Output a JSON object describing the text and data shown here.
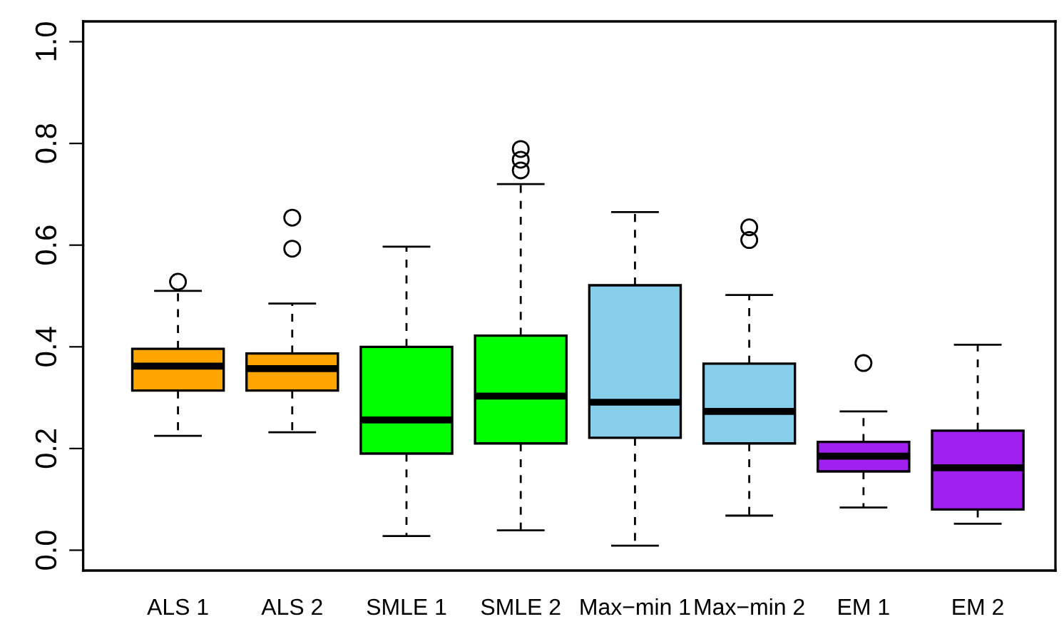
{
  "chart_data": {
    "type": "box",
    "categories": [
      "ALS 1",
      "ALS 2",
      "SMLE 1",
      "SMLE 2",
      "Max−min 1",
      "Max−min 2",
      "EM 1",
      "EM 2"
    ],
    "colors": [
      "#ffa500",
      "#ffa500",
      "#00ff00",
      "#00ff00",
      "#87ceeb",
      "#87ceeb",
      "#a020f0",
      "#a020f0"
    ],
    "boxes": [
      {
        "low": 0.225,
        "q1": 0.314,
        "median": 0.362,
        "q3": 0.396,
        "high": 0.51,
        "outliers": [
          0.528
        ]
      },
      {
        "low": 0.232,
        "q1": 0.314,
        "median": 0.357,
        "q3": 0.387,
        "high": 0.485,
        "outliers": [
          0.593,
          0.654
        ]
      },
      {
        "low": 0.028,
        "q1": 0.19,
        "median": 0.256,
        "q3": 0.4,
        "high": 0.597
      },
      {
        "low": 0.039,
        "q1": 0.21,
        "median": 0.303,
        "q3": 0.422,
        "high": 0.72,
        "outliers": [
          0.747,
          0.768,
          0.789
        ]
      },
      {
        "low": 0.009,
        "q1": 0.221,
        "median": 0.291,
        "q3": 0.521,
        "high": 0.665
      },
      {
        "low": 0.068,
        "q1": 0.21,
        "median": 0.273,
        "q3": 0.367,
        "high": 0.502,
        "outliers": [
          0.61,
          0.635
        ]
      },
      {
        "low": 0.084,
        "q1": 0.155,
        "median": 0.185,
        "q3": 0.213,
        "high": 0.273,
        "outliers": [
          0.368
        ]
      },
      {
        "low": 0.052,
        "q1": 0.08,
        "median": 0.162,
        "q3": 0.235,
        "high": 0.404
      }
    ],
    "ylim": [
      -0.04,
      1.04
    ],
    "yticks": [
      {
        "value": 0,
        "label": "0.0"
      },
      {
        "value": 0.2,
        "label": "0.2"
      },
      {
        "value": 0.4,
        "label": "0.4"
      },
      {
        "value": 0.6,
        "label": "0.6"
      },
      {
        "value": 0.8,
        "label": "0.8"
      },
      {
        "value": 1,
        "label": "1.0"
      }
    ],
    "grid": false,
    "legend": false
  }
}
